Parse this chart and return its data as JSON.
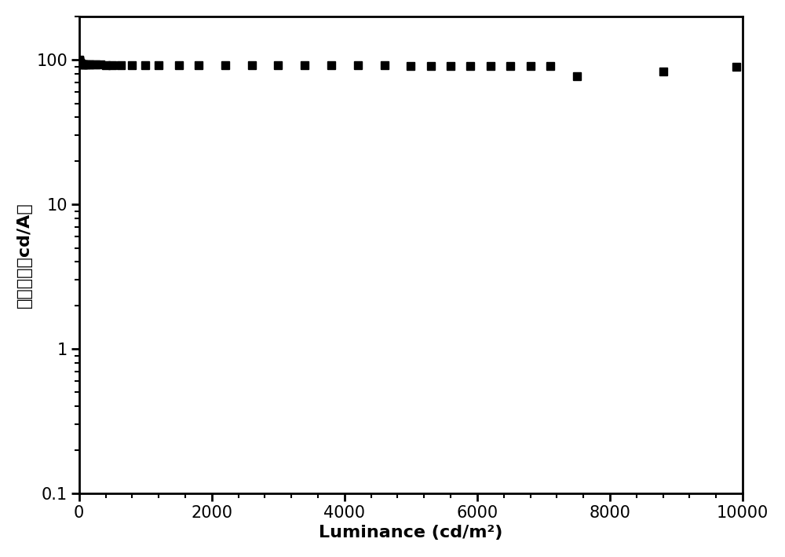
{
  "title": "",
  "xlabel": "Luminance (cd/m²)",
  "ylabel": "电流效率（cd/A）",
  "xlim": [
    0,
    10000
  ],
  "ylim": [
    0.1,
    200
  ],
  "xticks": [
    0,
    2000,
    4000,
    6000,
    8000,
    10000
  ],
  "yticks": [
    0.1,
    1,
    10,
    100
  ],
  "ytick_labels": [
    "0.1",
    "1",
    "10",
    "100"
  ],
  "marker_color": "#000000",
  "marker": "s",
  "markersize": 7,
  "x_data": [
    1,
    2,
    3,
    4,
    5,
    7,
    9,
    12,
    16,
    20,
    25,
    30,
    40,
    50,
    65,
    80,
    100,
    130,
    160,
    200,
    250,
    320,
    400,
    500,
    630,
    800,
    1000,
    1200,
    1500,
    1800,
    2200,
    2600,
    3000,
    3400,
    3800,
    4200,
    4600,
    5000,
    5300,
    5600,
    5900,
    6200,
    6500,
    6800,
    7100,
    7500,
    8800,
    9900
  ],
  "y_data": [
    100.5,
    99.5,
    98.5,
    97.5,
    96.8,
    96.0,
    95.5,
    95.0,
    94.5,
    94.2,
    94.0,
    93.8,
    93.5,
    93.3,
    93.1,
    93.0,
    92.9,
    92.8,
    92.7,
    92.6,
    92.6,
    92.5,
    92.4,
    92.3,
    92.3,
    92.2,
    92.1,
    92.1,
    92.0,
    91.9,
    91.9,
    91.8,
    91.7,
    91.6,
    91.5,
    91.4,
    91.3,
    91.2,
    91.1,
    91.0,
    90.9,
    90.8,
    90.7,
    90.6,
    90.5,
    77,
    83,
    90
  ],
  "background_color": "white",
  "border_color": "black",
  "spine_linewidth": 2.0,
  "tick_labelsize": 15,
  "xlabel_fontsize": 16,
  "ylabel_fontsize": 16
}
